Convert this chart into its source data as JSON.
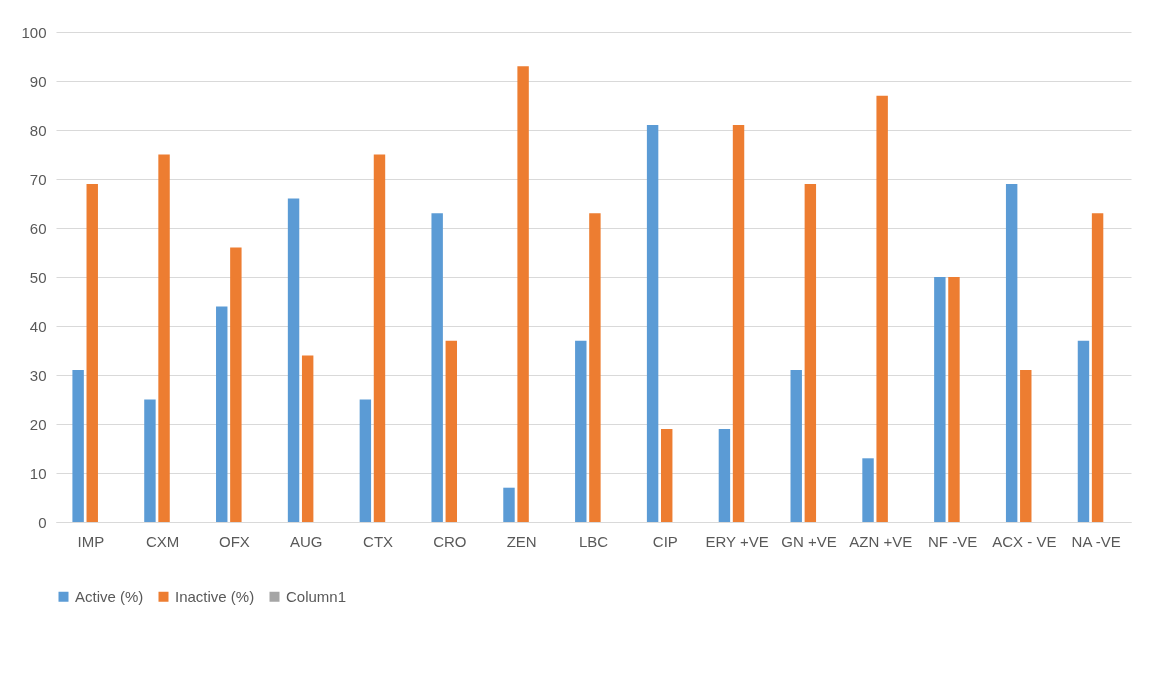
{
  "chart_data": {
    "type": "bar",
    "categories": [
      "IMP",
      "CXM",
      "OFX",
      "AUG",
      "CTX",
      "CRO",
      "ZEN",
      "LBC",
      "CIP",
      "ERY +VE",
      "GN +VE",
      "AZN +VE",
      "NF -VE",
      "ACX - VE",
      "NA -VE"
    ],
    "series": [
      {
        "name": "Active (%)",
        "color": "#5b9bd5",
        "values": [
          31,
          25,
          44,
          66,
          25,
          63,
          7,
          37,
          81,
          19,
          31,
          13,
          50,
          69,
          37
        ]
      },
      {
        "name": "Inactive (%)",
        "color": "#ed7d31",
        "values": [
          69,
          75,
          56,
          34,
          75,
          37,
          93,
          63,
          19,
          81,
          69,
          87,
          50,
          31,
          63
        ]
      },
      {
        "name": "Column1",
        "color": "#a5a5a5",
        "values": [
          null,
          null,
          null,
          null,
          null,
          null,
          null,
          null,
          null,
          null,
          null,
          null,
          null,
          null,
          null
        ]
      }
    ],
    "ylim": [
      0,
      100
    ],
    "yticks": [
      0,
      10,
      20,
      30,
      40,
      50,
      60,
      70,
      80,
      90,
      100
    ],
    "grid": "y",
    "legend": "bottom"
  }
}
